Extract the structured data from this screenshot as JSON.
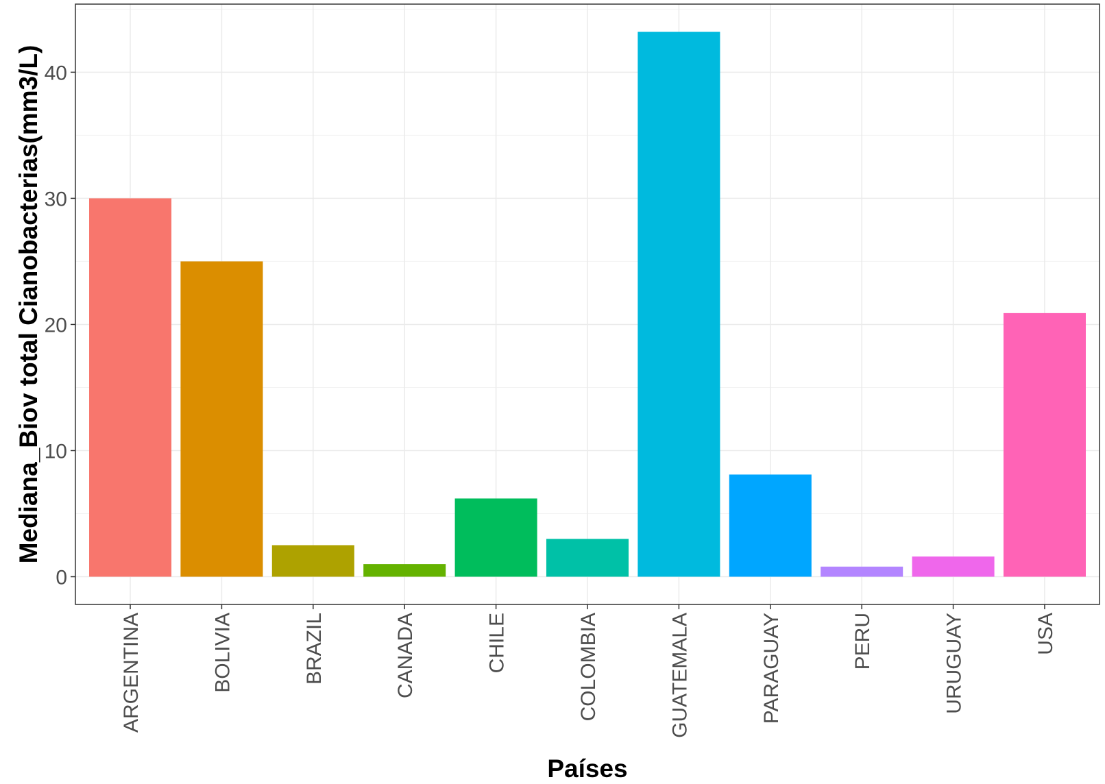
{
  "chart_data": {
    "type": "bar",
    "title": "",
    "xlabel": "Países",
    "ylabel": "Mediana_Biov total Cianobacterias(mm3/L)",
    "categories": [
      "ARGENTINA",
      "BOLIVIA",
      "BRAZIL",
      "CANADA",
      "CHILE",
      "COLOMBIA",
      "GUATEMALA",
      "PARAGUAY",
      "PERU",
      "URUGUAY",
      "USA"
    ],
    "values": [
      30.0,
      25.0,
      2.5,
      1.0,
      6.2,
      3.0,
      43.2,
      8.1,
      0.8,
      1.6,
      20.9
    ],
    "colors": [
      "#F8766D",
      "#DB8E00",
      "#AEA200",
      "#64B200",
      "#00BD5C",
      "#00C1A7",
      "#00BADE",
      "#00A6FF",
      "#B385FF",
      "#EF67EB",
      "#FF63B6"
    ],
    "ylim": [
      -2.2,
      45.4
    ],
    "yticks": [
      0,
      10,
      20,
      30,
      40
    ],
    "grid": true,
    "legend": "none"
  }
}
